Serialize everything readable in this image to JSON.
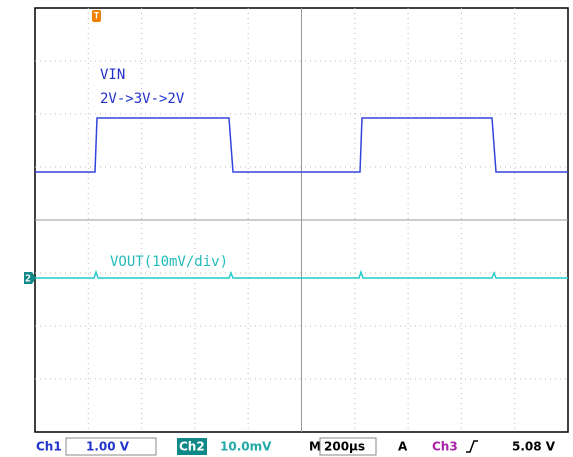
{
  "screen": {
    "labels": {
      "vin": "VIN",
      "vin_note": "2V->3V->2V",
      "vout": "VOUT(10mV/div)"
    },
    "markers": {
      "channel": "2",
      "trigger": "T"
    },
    "status_bar": {
      "ch1_label": "Ch1",
      "ch1_scale": "1.00 V",
      "ch2_label": "Ch2",
      "ch2_scale": "10.0mV",
      "timebase_label": "M",
      "timebase": "200µs",
      "trigger_label": "A",
      "trigger_source": "Ch3",
      "trigger_level": "5.08 V"
    }
  }
}
